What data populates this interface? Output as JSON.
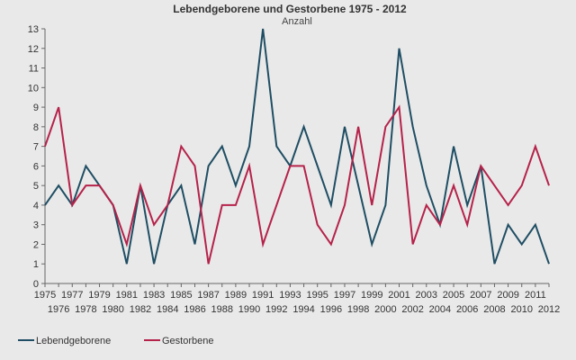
{
  "chart_data": {
    "type": "line",
    "title": "Lebendgeborene und Gestorbene 1975 - 2012",
    "subtitle": "Anzahl",
    "xlabel": "",
    "ylabel": "",
    "x": [
      1975,
      1976,
      1977,
      1978,
      1979,
      1980,
      1981,
      1982,
      1983,
      1984,
      1985,
      1986,
      1987,
      1988,
      1989,
      1990,
      1991,
      1992,
      1993,
      1994,
      1995,
      1996,
      1997,
      1998,
      1999,
      2000,
      2001,
      2002,
      2003,
      2004,
      2005,
      2006,
      2007,
      2008,
      2009,
      2010,
      2011,
      2012
    ],
    "xlim": [
      1975,
      2012
    ],
    "ylim": [
      0,
      13
    ],
    "yticks": [
      0,
      1,
      2,
      3,
      4,
      5,
      6,
      7,
      8,
      9,
      10,
      11,
      12,
      13
    ],
    "grid": false,
    "legend_position": "bottom-left",
    "series": [
      {
        "name": "Lebendgeborene",
        "color": "#1f4e64",
        "values": [
          4,
          5,
          4,
          6,
          5,
          4,
          1,
          5,
          1,
          4,
          5,
          2,
          6,
          7,
          5,
          7,
          13,
          7,
          6,
          8,
          6,
          4,
          8,
          5,
          2,
          4,
          12,
          8,
          5,
          3,
          7,
          4,
          6,
          1,
          3,
          2,
          3,
          1
        ]
      },
      {
        "name": "Gestorbene",
        "color": "#b5224a",
        "values": [
          7,
          9,
          4,
          5,
          5,
          4,
          2,
          5,
          3,
          4,
          7,
          6,
          1,
          4,
          4,
          6,
          2,
          4,
          6,
          6,
          3,
          2,
          4,
          8,
          4,
          8,
          9,
          2,
          4,
          3,
          5,
          3,
          6,
          5,
          4,
          5,
          7,
          5
        ]
      }
    ]
  }
}
